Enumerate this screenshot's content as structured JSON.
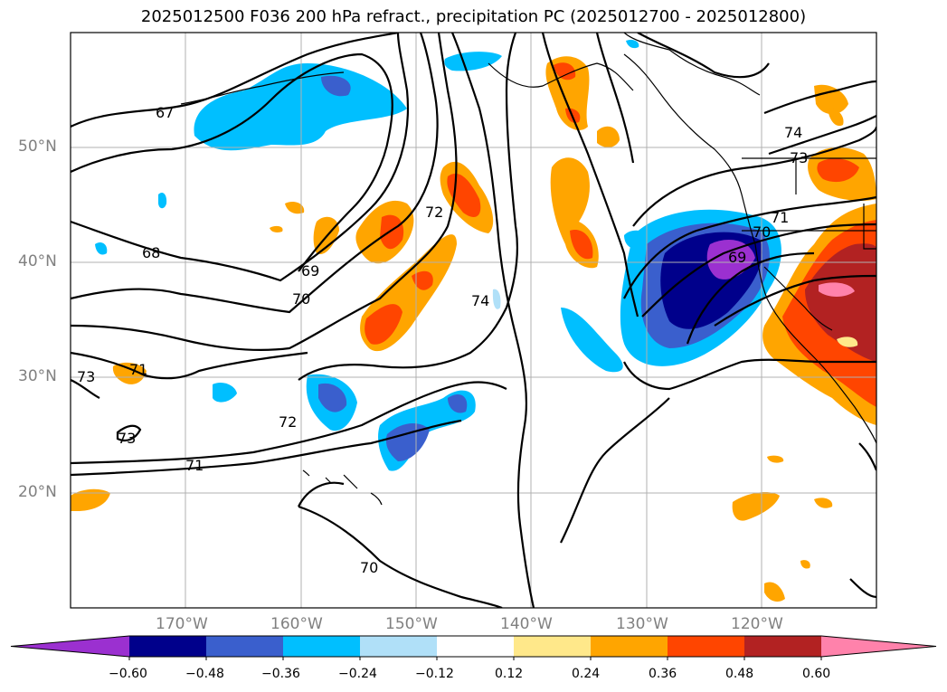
{
  "title": "2025012500 F036 200 hPa refract., precipitation PC (2025012700 - 2025012800)",
  "lat_labels": [
    "50°N",
    "40°N",
    "30°N",
    "20°N"
  ],
  "lon_labels": [
    "170°W",
    "160°W",
    "150°W",
    "140°W",
    "130°W",
    "120°W"
  ],
  "contour_labels": [
    "67",
    "68",
    "69",
    "70",
    "71",
    "72",
    "73",
    "74",
    "69",
    "70",
    "71",
    "72",
    "73",
    "74",
    "73",
    "71",
    "70"
  ],
  "colorbar": {
    "ticks": [
      "−0.60",
      "−0.48",
      "−0.36",
      "−0.24",
      "−0.12",
      "0.12",
      "0.24",
      "0.36",
      "0.48",
      "0.60"
    ],
    "colors": [
      "#9b30d0",
      "#00008b",
      "#3a5fcd",
      "#00bfff",
      "#b0e0f8",
      "#ffffff",
      "#ffe88a",
      "#ffa500",
      "#ff4500",
      "#b22222",
      "#ff82ab"
    ]
  }
}
